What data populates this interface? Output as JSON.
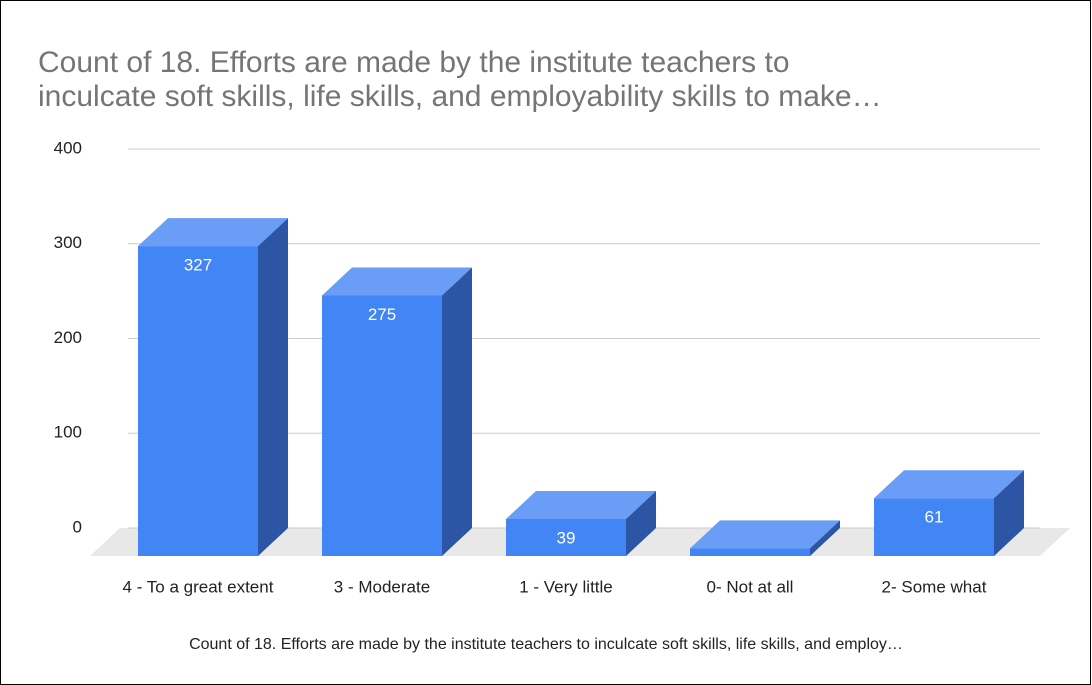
{
  "chart_data": {
    "type": "bar3d",
    "title": [
      "Count of 18. Efforts are made by the institute teachers to",
      "inculcate soft skills, life skills, and employability skills to make…"
    ],
    "categories": [
      "4 - To a great extent",
      "3 - Moderate",
      "1 - Very little",
      "0- Not at all",
      "2- Some what"
    ],
    "series": [
      {
        "name": "Count of 18. Efforts are made by the institute teachers to inculcate soft skills, life skills, and employ…",
        "color": "#4285f4",
        "values": [
          327,
          275,
          39,
          8,
          61
        ]
      }
    ],
    "ylim": [
      0,
      400
    ],
    "yticks": [
      0,
      100,
      200,
      300,
      400
    ],
    "grid": true
  }
}
